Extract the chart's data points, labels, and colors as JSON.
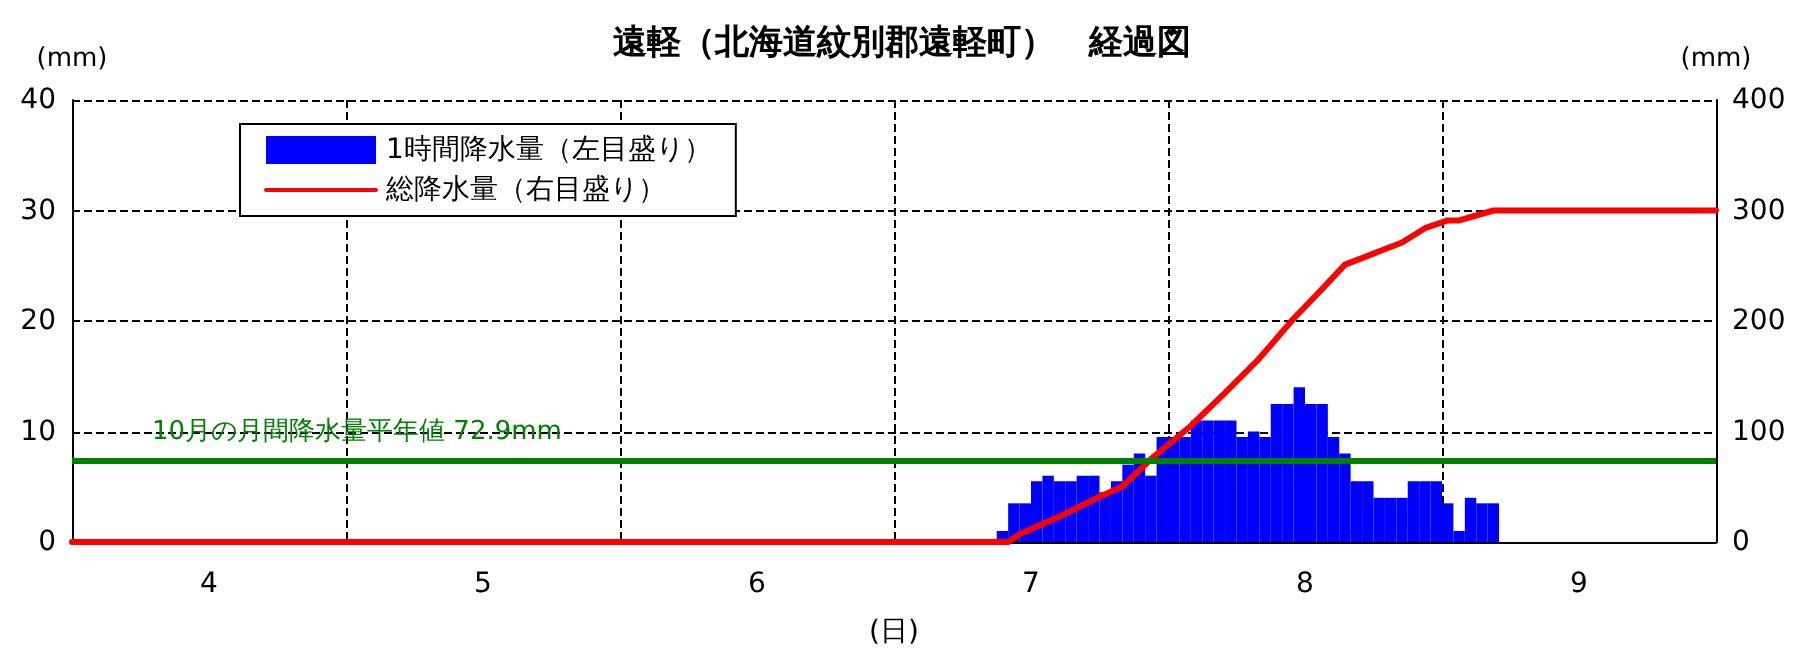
{
  "chart_data": {
    "type": "bar",
    "title": "遠軽（北海道紋別郡遠軽町）　経過図",
    "xlabel": "(日)",
    "ylabel": "(mm)",
    "y2label": "(mm)",
    "xlim": [
      3.5,
      9.5
    ],
    "xticks": [
      4,
      {
        "value": 4.5,
        "label": null
      },
      5,
      {
        "value": 5.5,
        "label": null
      },
      6,
      {
        "value": 6.5,
        "label": null
      },
      7,
      {
        "value": 7.5,
        "label": null
      },
      8,
      {
        "value": 8.5,
        "label": null
      },
      9
    ],
    "ylim": [
      0,
      40
    ],
    "yticks": [
      0,
      10,
      20,
      30,
      40
    ],
    "y2lim": [
      0,
      400
    ],
    "y2ticks": [
      0,
      100,
      200,
      300,
      400
    ],
    "grid": true,
    "legend": "top left",
    "line_style": "dashed",
    "series": [
      {
        "name": "1時間降水量（左目盛り）",
        "color": "#0000ff",
        "x": [
          6.8958,
          6.9375,
          6.9792,
          7.0208,
          7.0625,
          7.1042,
          7.1458,
          7.1875,
          7.2292,
          7.2708,
          7.3125,
          7.3542,
          7.3958,
          7.4375,
          7.4792,
          7.5208,
          7.5625,
          7.6042,
          7.6458,
          7.6875,
          7.7292,
          7.7708,
          7.8125,
          7.8542,
          7.8958,
          7.9375,
          7.9792,
          8.0208,
          8.0625,
          8.1042,
          8.1458,
          8.1875,
          8.2292,
          8.2708,
          8.3125,
          8.3542,
          8.3958,
          8.4375,
          8.4792,
          8.5208,
          8.5625,
          8.6042,
          8.6458,
          8.6875
        ],
        "values": [
          1,
          3.5,
          3.5,
          5.5,
          6,
          5.5,
          5.5,
          6,
          6,
          4.5,
          5.5,
          7,
          8,
          6,
          9.5,
          9.5,
          9.5,
          11,
          11,
          11,
          11,
          9.5,
          10,
          9.5,
          12.5,
          12.5,
          14,
          12.5,
          12.5,
          9.5,
          8,
          5.5,
          5.5,
          4,
          4,
          4,
          5.5,
          5.5,
          5.5,
          3.5,
          1,
          4,
          3.5,
          3.5
        ]
      },
      {
        "name": "総降水量（右目盛り）",
        "type": "line",
        "axis": "y2",
        "color": "#ff0000",
        "line_style": "solid",
        "marker": "none",
        "x": [
          3.5,
          6.917,
          6.958,
          7.104,
          7.25,
          7.333,
          7.438,
          7.583,
          7.708,
          7.833,
          7.958,
          8.063,
          8.146,
          8.25,
          8.354,
          8.438,
          8.521,
          8.563,
          8.688,
          8.708,
          9.5
        ],
        "values": [
          0,
          0,
          7,
          23,
          41,
          50,
          75,
          105,
          135,
          166,
          202,
          229,
          251,
          261,
          271,
          284,
          291,
          291,
          300,
          300,
          300
        ]
      }
    ],
    "ref_lines": [
      {
        "axis": "y2",
        "value": 72.9,
        "label": "10月の月間降水量平年値 72.9mm",
        "color": "#008000",
        "line_style": "solid"
      }
    ]
  }
}
